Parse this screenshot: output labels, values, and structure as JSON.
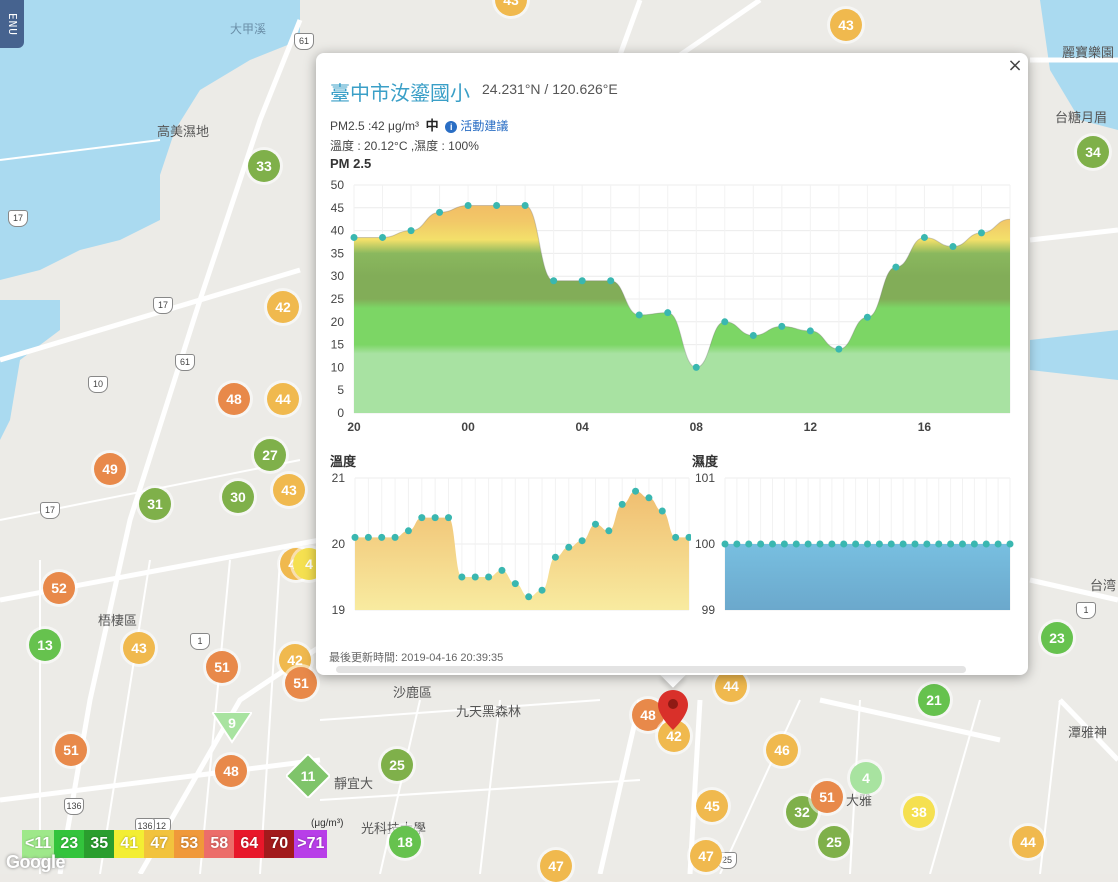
{
  "menu": {
    "label": "ENU"
  },
  "map": {
    "labels": {
      "dajia_river": "大甲溪",
      "gaomei_wetland": "高美濕地",
      "wuqi_district": "梧棲區",
      "shalu_district": "沙鹿區",
      "jiutian_forest": "九天黑森林",
      "taichung_yuemei": "台糖月眉",
      "lihbao": "麗寶樂園",
      "tanya_shen": "潭雅神",
      "jingyi": "靜宜大",
      "guanguang_univ": "光科技大學",
      "daya": "大雅",
      "taichung_edge": "台湾"
    },
    "road_numbers": [
      "61",
      "17",
      "10",
      "61",
      "17",
      "17",
      "1",
      "1",
      "12",
      "136",
      "136",
      "25"
    ],
    "markers": [
      {
        "v": "43",
        "c": "#f0b94e"
      },
      {
        "v": "33",
        "c": "#7fb04a"
      },
      {
        "v": "42",
        "c": "#f0b94e"
      },
      {
        "v": "48",
        "c": "#e8894a"
      },
      {
        "v": "44",
        "c": "#f0b94e"
      },
      {
        "v": "49",
        "c": "#e8894a"
      },
      {
        "v": "27",
        "c": "#7fb04a"
      },
      {
        "v": "31",
        "c": "#7fb04a"
      },
      {
        "v": "30",
        "c": "#7fb04a"
      },
      {
        "v": "43",
        "c": "#f0b94e"
      },
      {
        "v": "52",
        "c": "#e8894a"
      },
      {
        "v": "13",
        "c": "#66c24e"
      },
      {
        "v": "43",
        "c": "#f0b94e"
      },
      {
        "v": "51",
        "c": "#e8894a"
      },
      {
        "v": "42",
        "c": "#f0b94e"
      },
      {
        "v": "51",
        "c": "#e8894a"
      },
      {
        "v": "51",
        "c": "#e8894a"
      },
      {
        "v": "48",
        "c": "#e8894a"
      },
      {
        "v": "25",
        "c": "#7fb04a"
      },
      {
        "v": "18",
        "c": "#66c24e"
      },
      {
        "v": "47",
        "c": "#f0b94e"
      },
      {
        "v": "48",
        "c": "#e8894a"
      },
      {
        "v": "42",
        "c": "#f0b94e"
      },
      {
        "v": "44",
        "c": "#f0b94e"
      },
      {
        "v": "46",
        "c": "#f0b94e"
      },
      {
        "v": "45",
        "c": "#f0b94e"
      },
      {
        "v": "47",
        "c": "#f0b94e"
      },
      {
        "v": "32",
        "c": "#7fb04a"
      },
      {
        "v": "51",
        "c": "#e8894a"
      },
      {
        "v": "4",
        "c": "#a8e3a0"
      },
      {
        "v": "38",
        "c": "#f5e050"
      },
      {
        "v": "25",
        "c": "#7fb04a"
      },
      {
        "v": "44",
        "c": "#f0b94e"
      },
      {
        "v": "21",
        "c": "#66c24e"
      },
      {
        "v": "23",
        "c": "#66c24e"
      },
      {
        "v": "34",
        "c": "#7fb04a"
      },
      {
        "v": "43",
        "c": "#f0b94e"
      },
      {
        "v": "4",
        "c": "#f5e050"
      }
    ],
    "triangle_marker": "9",
    "diamond_marker": "11"
  },
  "popup": {
    "close_label": "×",
    "station_name": "臺中市汝鎏國小",
    "coordinates": "24.231°N / 120.626°E",
    "pm25_text": "PM2.5 :42 μg/m³",
    "pm25_level": "中",
    "advice_label": "活動建議",
    "advice_icon": "i",
    "temp_humidity_text": "溫度 : 20.12°C ,濕度 : 100%",
    "update_text": "最後更新時間: 2019-04-16 20:39:35"
  },
  "legend": {
    "unit": "(μg/m³)",
    "cells": [
      {
        "label": "<11",
        "color": "#9ee88a"
      },
      {
        "label": "23",
        "color": "#33c43c"
      },
      {
        "label": "35",
        "color": "#2a9e2e"
      },
      {
        "label": "41",
        "color": "#f3ee33"
      },
      {
        "label": "47",
        "color": "#f2c33d"
      },
      {
        "label": "53",
        "color": "#f0993a"
      },
      {
        "label": "58",
        "color": "#ec6d6a"
      },
      {
        "label": "64",
        "color": "#e8172a"
      },
      {
        "label": "70",
        "color": "#a21a1c"
      },
      {
        "label": ">71",
        "color": "#b83ee8"
      }
    ]
  },
  "google_logo": "Google",
  "chart_data": [
    {
      "type": "area",
      "title": "PM 2.5",
      "x_tick_labels": [
        "20",
        "00",
        "04",
        "08",
        "12",
        "16"
      ],
      "ylim": [
        0,
        50
      ],
      "y_ticks": [
        0,
        5,
        10,
        15,
        20,
        25,
        30,
        35,
        40,
        45,
        50
      ],
      "grid": true,
      "series": [
        {
          "x_hours": [
            20,
            21,
            22,
            23,
            0,
            1,
            2,
            3,
            4,
            5,
            6,
            7,
            8,
            9,
            10,
            11,
            12,
            13,
            14,
            15,
            16,
            17,
            18
          ],
          "values": [
            38.5,
            38.5,
            40,
            44,
            45.5,
            45.5,
            45.5,
            29,
            29,
            29,
            21.5,
            22,
            10,
            20,
            17,
            19,
            18,
            14,
            21,
            32,
            38.5,
            36.5,
            39.5
          ]
        }
      ],
      "end_value": 42.5
    },
    {
      "type": "area",
      "title": "溫度",
      "ylim": [
        19,
        21
      ],
      "y_ticks": [
        19,
        20,
        21
      ],
      "grid": true,
      "series": [
        {
          "values": [
            20.1,
            20.1,
            20.1,
            20.1,
            20.2,
            20.4,
            20.4,
            20.4,
            19.5,
            19.5,
            19.5,
            19.6,
            19.4,
            19.2,
            19.3,
            19.8,
            19.95,
            20.05,
            20.3,
            20.2,
            20.6,
            20.8,
            20.7,
            20.5,
            20.1,
            20.1
          ]
        }
      ]
    },
    {
      "type": "area",
      "title": "濕度",
      "ylim": [
        99,
        101
      ],
      "y_ticks": [
        99,
        100,
        101
      ],
      "grid": true,
      "series": [
        {
          "values": [
            100,
            100,
            100,
            100,
            100,
            100,
            100,
            100,
            100,
            100,
            100,
            100,
            100,
            100,
            100,
            100,
            100,
            100,
            100,
            100,
            100,
            100,
            100,
            100,
            100
          ]
        }
      ]
    }
  ]
}
